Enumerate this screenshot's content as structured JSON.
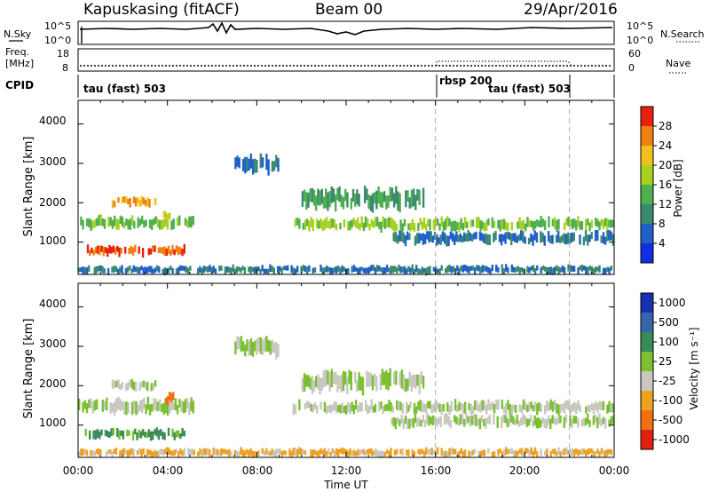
{
  "header": {
    "station": "Kapuskasing (fitACF)",
    "beam": "Beam 00",
    "date": "29/Apr/2016"
  },
  "noise_panel": {
    "left_label": "N.Sky",
    "right_label": "N.Search",
    "top_tick": "10^5",
    "bottom_tick": "10^0"
  },
  "freq_panel": {
    "left_label_1": "Freq.",
    "left_label_2": "[MHz]",
    "right_label": "Nave",
    "left_ticks": [
      "18",
      "8"
    ],
    "right_ticks": [
      "60",
      "0"
    ]
  },
  "cpid_panel": {
    "label": "CPID",
    "segments": [
      {
        "label": "tau (fast) 503",
        "start_hour": 0
      },
      {
        "label": "rbsp 200",
        "start_hour": 16
      },
      {
        "label": "tau (fast) 503",
        "start_hour": 22
      }
    ]
  },
  "x_axis": {
    "label": "Time UT",
    "ticks": [
      "00:00",
      "04:00",
      "08:00",
      "12:00",
      "16:00",
      "20:00",
      "00:00"
    ]
  },
  "power_colorbar": {
    "label": "Power [dB]",
    "ticks": [
      "28",
      "24",
      "20",
      "16",
      "12",
      "8",
      "4"
    ],
    "colors": [
      "#1030e0",
      "#2060c8",
      "#3a8a70",
      "#50b050",
      "#a8d020",
      "#f0c020",
      "#f08010",
      "#e82010"
    ]
  },
  "velocity_colorbar": {
    "label": "Velocity [m s⁻¹]",
    "ticks": [
      "1000",
      "500",
      "100",
      "25",
      "-25",
      "-100",
      "-500",
      "-1000"
    ],
    "colors": [
      "#1a30b0",
      "#3366aa",
      "#3a8a5a",
      "#7ac030",
      "#c8c8c0",
      "#f0a020",
      "#f07010",
      "#e02010"
    ]
  },
  "chart_data": [
    {
      "type": "heatmap",
      "name": "power",
      "ylabel": "Slant Range [km]",
      "xlabel": "Time UT",
      "xlim": [
        0,
        24
      ],
      "ylim": [
        180,
        4600
      ],
      "yticks": [
        "4000",
        "3000",
        "2000",
        "1000"
      ],
      "dashed_lines_hours": [
        16,
        22
      ],
      "bands": [
        {
          "t0": 0.0,
          "t1": 5.2,
          "r0": 1350,
          "r1": 1650,
          "v": 16
        },
        {
          "t0": 0.3,
          "t1": 4.8,
          "r0": 650,
          "r1": 900,
          "v": 28
        },
        {
          "t0": 3.8,
          "t1": 4.3,
          "r0": 1550,
          "r1": 1800,
          "v": 20
        },
        {
          "t0": 1.5,
          "t1": 3.5,
          "r0": 1900,
          "r1": 2150,
          "v": 24
        },
        {
          "t0": 7.0,
          "t1": 9.0,
          "r0": 2750,
          "r1": 3200,
          "v": 8
        },
        {
          "t0": 9.6,
          "t1": 24.0,
          "r0": 1300,
          "r1": 1600,
          "v": 16
        },
        {
          "t0": 10.0,
          "t1": 15.5,
          "r0": 1850,
          "r1": 2350,
          "v": 12
        },
        {
          "t0": 14.0,
          "t1": 24.0,
          "r0": 950,
          "r1": 1250,
          "v": 8
        },
        {
          "t0": 0.0,
          "t1": 24.0,
          "r0": 200,
          "r1": 400,
          "v": 8
        }
      ]
    },
    {
      "type": "heatmap",
      "name": "velocity",
      "ylabel": "Slant Range [km]",
      "xlabel": "Time UT",
      "xlim": [
        0,
        24
      ],
      "ylim": [
        180,
        4600
      ],
      "yticks": [
        "4000",
        "3000",
        "2000",
        "1000"
      ],
      "dashed_lines_hours": [
        16,
        22
      ],
      "bands": [
        {
          "t0": 0.0,
          "t1": 5.2,
          "r0": 1300,
          "r1": 1650,
          "v": 0
        },
        {
          "t0": 0.3,
          "t1": 4.8,
          "r0": 650,
          "r1": 900,
          "v": 100
        },
        {
          "t0": 3.8,
          "t1": 4.3,
          "r0": 1550,
          "r1": 1800,
          "v": -500
        },
        {
          "t0": 1.5,
          "t1": 3.5,
          "r0": 1900,
          "r1": 2150,
          "v": 0
        },
        {
          "t0": 7.0,
          "t1": 9.0,
          "r0": 2750,
          "r1": 3200,
          "v": 0
        },
        {
          "t0": 9.6,
          "t1": 24.0,
          "r0": 1300,
          "r1": 1600,
          "v": 0
        },
        {
          "t0": 10.0,
          "t1": 15.5,
          "r0": 1850,
          "r1": 2350,
          "v": 0
        },
        {
          "t0": 14.0,
          "t1": 24.0,
          "r0": 950,
          "r1": 1250,
          "v": 0
        },
        {
          "t0": 0.0,
          "t1": 24.0,
          "r0": 200,
          "r1": 400,
          "v": -100
        }
      ]
    }
  ]
}
